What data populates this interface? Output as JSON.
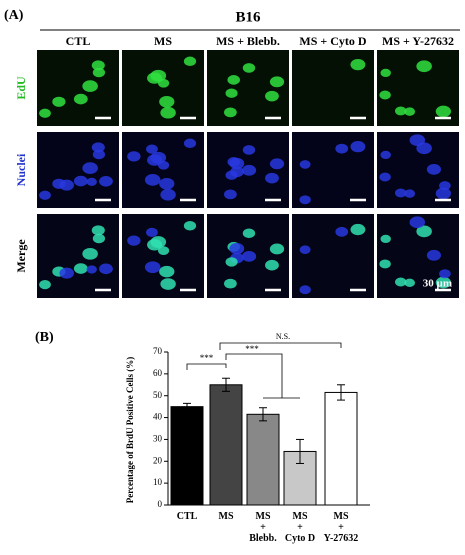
{
  "panel_a": {
    "label": "(A)",
    "title": "B16",
    "columns": [
      "CTL",
      "MS",
      "MS + Blebb.",
      "MS + Cyto D",
      "MS + Y-27632"
    ],
    "rows": [
      "EdU",
      "Nuclei",
      "Merge"
    ],
    "scale_bar": "30 µm"
  },
  "panel_b": {
    "label": "(B)"
  },
  "chart_data": {
    "type": "bar",
    "ylabel": "Percentage of BrdU Positive Cells (%)",
    "categories": [
      "CTL",
      "MS",
      "MS\n+\nBlebb.",
      "MS\n+\nCyto D",
      "MS\n+\nY-27632"
    ],
    "values": [
      45,
      55,
      41.5,
      24.5,
      51.5
    ],
    "errors": [
      1.5,
      3,
      3,
      5.5,
      3.5
    ],
    "colors": [
      "#000000",
      "#444444",
      "#888888",
      "#c8c8c8",
      "#ffffff"
    ],
    "ylim": [
      0,
      70
    ],
    "yticks": [
      0,
      10,
      20,
      30,
      40,
      50,
      60,
      70
    ],
    "annotations": [
      "***",
      "***",
      "N.S."
    ]
  }
}
